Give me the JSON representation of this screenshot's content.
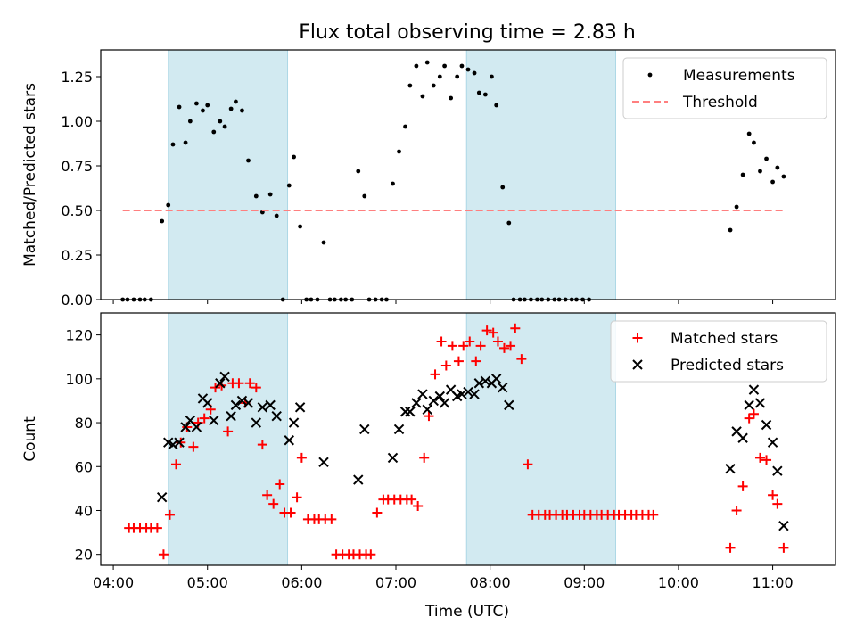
{
  "figure": {
    "title": "Flux total observing time = 2.83 h",
    "xlabel": "Time (UTC)"
  },
  "colors": {
    "background": "#ffffff",
    "shade": "#add8e6",
    "measurement": "#000000",
    "threshold": "#ff7f7f",
    "matched": "#ff0000",
    "predicted": "#000000"
  },
  "chart_data": [
    {
      "type": "scatter",
      "xlabel": "Time (UTC)",
      "ylabel": "Matched/Predicted stars",
      "xlim": [
        "03:52",
        "11:40"
      ],
      "ylim": [
        0,
        1.4
      ],
      "xticks": [
        "04:00",
        "05:00",
        "06:00",
        "07:00",
        "08:00",
        "09:00",
        "10:00",
        "11:00"
      ],
      "yticks": [
        "0.00",
        "0.25",
        "0.50",
        "0.75",
        "1.00",
        "1.25"
      ],
      "grid": false,
      "legend_position": "top-right",
      "shaded_intervals": [
        [
          "04:35",
          "05:51"
        ],
        [
          "07:45",
          "09:20"
        ]
      ],
      "series": [
        {
          "name": "Measurements",
          "points": [
            [
              "04:06",
              0
            ],
            [
              "04:09",
              0
            ],
            [
              "04:13",
              0
            ],
            [
              "04:17",
              0
            ],
            [
              "04:20",
              0
            ],
            [
              "04:24",
              0
            ],
            [
              "04:31",
              0.44
            ],
            [
              "04:35",
              0.53
            ],
            [
              "04:38",
              0.87
            ],
            [
              "04:42",
              1.08
            ],
            [
              "04:46",
              0.88
            ],
            [
              "04:49",
              1.0
            ],
            [
              "04:53",
              1.1
            ],
            [
              "04:57",
              1.06
            ],
            [
              "05:00",
              1.09
            ],
            [
              "05:04",
              0.94
            ],
            [
              "05:08",
              1.0
            ],
            [
              "05:11",
              0.97
            ],
            [
              "05:15",
              1.07
            ],
            [
              "05:18",
              1.11
            ],
            [
              "05:22",
              1.06
            ],
            [
              "05:26",
              0.78
            ],
            [
              "05:31",
              0.58
            ],
            [
              "05:35",
              0.49
            ],
            [
              "05:40",
              0.59
            ],
            [
              "05:44",
              0.47
            ],
            [
              "05:48",
              0
            ],
            [
              "05:52",
              0.64
            ],
            [
              "05:55",
              0.8
            ],
            [
              "05:59",
              0.41
            ],
            [
              "06:03",
              0
            ],
            [
              "06:06",
              0
            ],
            [
              "06:10",
              0
            ],
            [
              "06:14",
              0.32
            ],
            [
              "06:18",
              0
            ],
            [
              "06:21",
              0
            ],
            [
              "06:25",
              0
            ],
            [
              "06:28",
              0
            ],
            [
              "06:32",
              0
            ],
            [
              "06:36",
              0.72
            ],
            [
              "06:40",
              0.58
            ],
            [
              "06:43",
              0
            ],
            [
              "06:47",
              0
            ],
            [
              "06:51",
              0
            ],
            [
              "06:54",
              0
            ],
            [
              "06:58",
              0.65
            ],
            [
              "07:02",
              0.83
            ],
            [
              "07:06",
              0.97
            ],
            [
              "07:09",
              1.2
            ],
            [
              "07:13",
              1.31
            ],
            [
              "07:17",
              1.14
            ],
            [
              "07:20",
              1.33
            ],
            [
              "07:24",
              1.2
            ],
            [
              "07:28",
              1.25
            ],
            [
              "07:31",
              1.31
            ],
            [
              "07:35",
              1.13
            ],
            [
              "07:39",
              1.25
            ],
            [
              "07:42",
              1.31
            ],
            [
              "07:46",
              1.29
            ],
            [
              "07:50",
              1.27
            ],
            [
              "07:53",
              1.16
            ],
            [
              "07:57",
              1.15
            ],
            [
              "08:01",
              1.25
            ],
            [
              "08:04",
              1.09
            ],
            [
              "08:08",
              0.63
            ],
            [
              "08:12",
              0.43
            ],
            [
              "08:15",
              0
            ],
            [
              "08:19",
              0
            ],
            [
              "08:22",
              0
            ],
            [
              "08:26",
              0
            ],
            [
              "08:30",
              0
            ],
            [
              "08:33",
              0
            ],
            [
              "08:37",
              0
            ],
            [
              "08:41",
              0
            ],
            [
              "08:44",
              0
            ],
            [
              "08:48",
              0
            ],
            [
              "08:52",
              0
            ],
            [
              "08:55",
              0
            ],
            [
              "08:59",
              0
            ],
            [
              "09:03",
              0
            ],
            [
              "10:33",
              0.39
            ],
            [
              "10:37",
              0.52
            ],
            [
              "10:41",
              0.7
            ],
            [
              "10:45",
              0.93
            ],
            [
              "10:48",
              0.88
            ],
            [
              "10:52",
              0.72
            ],
            [
              "10:56",
              0.79
            ],
            [
              "11:00",
              0.66
            ],
            [
              "11:03",
              0.74
            ],
            [
              "11:07",
              0.69
            ]
          ]
        },
        {
          "name": "Threshold",
          "points": [
            [
              "04:06",
              0.5
            ],
            [
              "11:07",
              0.5
            ]
          ]
        }
      ]
    },
    {
      "type": "scatter",
      "xlabel": "Time (UTC)",
      "ylabel": "Count",
      "xlim": [
        "03:52",
        "11:40"
      ],
      "ylim": [
        15,
        130
      ],
      "xticks": [
        "04:00",
        "05:00",
        "06:00",
        "07:00",
        "08:00",
        "09:00",
        "10:00",
        "11:00"
      ],
      "yticks": [
        "20",
        "40",
        "60",
        "80",
        "100",
        "120"
      ],
      "grid": false,
      "legend_position": "top-right",
      "shaded_intervals": [
        [
          "04:35",
          "05:51"
        ],
        [
          "07:45",
          "09:20"
        ]
      ],
      "series": [
        {
          "name": "Matched stars",
          "points": [
            [
              "04:10",
              32
            ],
            [
              "04:13",
              32
            ],
            [
              "04:17",
              32
            ],
            [
              "04:21",
              32
            ],
            [
              "04:24",
              32
            ],
            [
              "04:28",
              32
            ],
            [
              "04:32",
              20
            ],
            [
              "04:36",
              38
            ],
            [
              "04:40",
              61
            ],
            [
              "04:43",
              71
            ],
            [
              "04:47",
              78
            ],
            [
              "04:51",
              69
            ],
            [
              "04:54",
              80
            ],
            [
              "04:58",
              82
            ],
            [
              "05:02",
              86
            ],
            [
              "05:05",
              96
            ],
            [
              "05:09",
              97
            ],
            [
              "05:13",
              76
            ],
            [
              "05:16",
              98
            ],
            [
              "05:20",
              98
            ],
            [
              "05:24",
              89
            ],
            [
              "05:27",
              98
            ],
            [
              "05:31",
              96
            ],
            [
              "05:35",
              70
            ],
            [
              "05:38",
              47
            ],
            [
              "05:42",
              43
            ],
            [
              "05:46",
              52
            ],
            [
              "05:49",
              39
            ],
            [
              "05:53",
              39
            ],
            [
              "05:57",
              46
            ],
            [
              "06:00",
              64
            ],
            [
              "06:04",
              36
            ],
            [
              "06:08",
              36
            ],
            [
              "06:11",
              36
            ],
            [
              "06:15",
              36
            ],
            [
              "06:19",
              36
            ],
            [
              "06:22",
              20
            ],
            [
              "06:26",
              20
            ],
            [
              "06:30",
              20
            ],
            [
              "06:33",
              20
            ],
            [
              "06:37",
              20
            ],
            [
              "06:41",
              20
            ],
            [
              "06:44",
              20
            ],
            [
              "06:48",
              39
            ],
            [
              "06:52",
              45
            ],
            [
              "06:55",
              45
            ],
            [
              "06:59",
              45
            ],
            [
              "07:03",
              45
            ],
            [
              "07:07",
              45
            ],
            [
              "07:10",
              45
            ],
            [
              "07:14",
              42
            ],
            [
              "07:18",
              64
            ],
            [
              "07:21",
              83
            ],
            [
              "07:25",
              102
            ],
            [
              "07:29",
              117
            ],
            [
              "07:32",
              106
            ],
            [
              "07:36",
              115
            ],
            [
              "07:40",
              108
            ],
            [
              "07:43",
              115
            ],
            [
              "07:47",
              117
            ],
            [
              "07:51",
              108
            ],
            [
              "07:54",
              115
            ],
            [
              "07:58",
              122
            ],
            [
              "08:02",
              121
            ],
            [
              "08:05",
              117
            ],
            [
              "08:09",
              114
            ],
            [
              "08:13",
              115
            ],
            [
              "08:16",
              123
            ],
            [
              "08:20",
              109
            ],
            [
              "08:24",
              61
            ],
            [
              "08:27",
              38
            ],
            [
              "08:31",
              38
            ],
            [
              "08:35",
              38
            ],
            [
              "08:38",
              38
            ],
            [
              "08:42",
              38
            ],
            [
              "08:46",
              38
            ],
            [
              "08:49",
              38
            ],
            [
              "08:53",
              38
            ],
            [
              "08:57",
              38
            ],
            [
              "09:00",
              38
            ],
            [
              "09:04",
              38
            ],
            [
              "09:08",
              38
            ],
            [
              "09:11",
              38
            ],
            [
              "09:15",
              38
            ],
            [
              "09:19",
              38
            ],
            [
              "09:22",
              38
            ],
            [
              "09:26",
              38
            ],
            [
              "09:30",
              38
            ],
            [
              "09:33",
              38
            ],
            [
              "09:37",
              38
            ],
            [
              "09:41",
              38
            ],
            [
              "09:44",
              38
            ],
            [
              "10:33",
              23
            ],
            [
              "10:37",
              40
            ],
            [
              "10:41",
              51
            ],
            [
              "10:45",
              82
            ],
            [
              "10:48",
              84
            ],
            [
              "10:52",
              64
            ],
            [
              "10:56",
              63
            ],
            [
              "11:00",
              47
            ],
            [
              "11:03",
              43
            ],
            [
              "11:07",
              23
            ]
          ]
        },
        {
          "name": "Predicted stars",
          "points": [
            [
              "04:31",
              46
            ],
            [
              "04:35",
              71
            ],
            [
              "04:38",
              70
            ],
            [
              "04:42",
              71
            ],
            [
              "04:46",
              78
            ],
            [
              "04:49",
              81
            ],
            [
              "04:53",
              78
            ],
            [
              "04:57",
              91
            ],
            [
              "05:00",
              89
            ],
            [
              "05:04",
              81
            ],
            [
              "05:08",
              98
            ],
            [
              "05:11",
              101
            ],
            [
              "05:15",
              83
            ],
            [
              "05:18",
              88
            ],
            [
              "05:22",
              90
            ],
            [
              "05:26",
              89
            ],
            [
              "05:31",
              80
            ],
            [
              "05:35",
              87
            ],
            [
              "05:40",
              88
            ],
            [
              "05:44",
              83
            ],
            [
              "05:52",
              72
            ],
            [
              "05:55",
              80
            ],
            [
              "05:59",
              87
            ],
            [
              "06:14",
              62
            ],
            [
              "06:36",
              54
            ],
            [
              "06:40",
              77
            ],
            [
              "06:58",
              64
            ],
            [
              "07:02",
              77
            ],
            [
              "07:06",
              85
            ],
            [
              "07:09",
              85
            ],
            [
              "07:13",
              89
            ],
            [
              "07:17",
              93
            ],
            [
              "07:20",
              86
            ],
            [
              "07:24",
              90
            ],
            [
              "07:28",
              92
            ],
            [
              "07:31",
              89
            ],
            [
              "07:35",
              95
            ],
            [
              "07:39",
              92
            ],
            [
              "07:42",
              93
            ],
            [
              "07:46",
              94
            ],
            [
              "07:50",
              93
            ],
            [
              "07:53",
              98
            ],
            [
              "07:57",
              99
            ],
            [
              "08:01",
              98
            ],
            [
              "08:04",
              100
            ],
            [
              "08:08",
              96
            ],
            [
              "08:12",
              88
            ],
            [
              "10:33",
              59
            ],
            [
              "10:37",
              76
            ],
            [
              "10:41",
              73
            ],
            [
              "10:45",
              88
            ],
            [
              "10:48",
              95
            ],
            [
              "10:52",
              89
            ],
            [
              "10:56",
              79
            ],
            [
              "11:00",
              71
            ],
            [
              "11:03",
              58
            ],
            [
              "11:07",
              33
            ]
          ]
        }
      ]
    }
  ]
}
